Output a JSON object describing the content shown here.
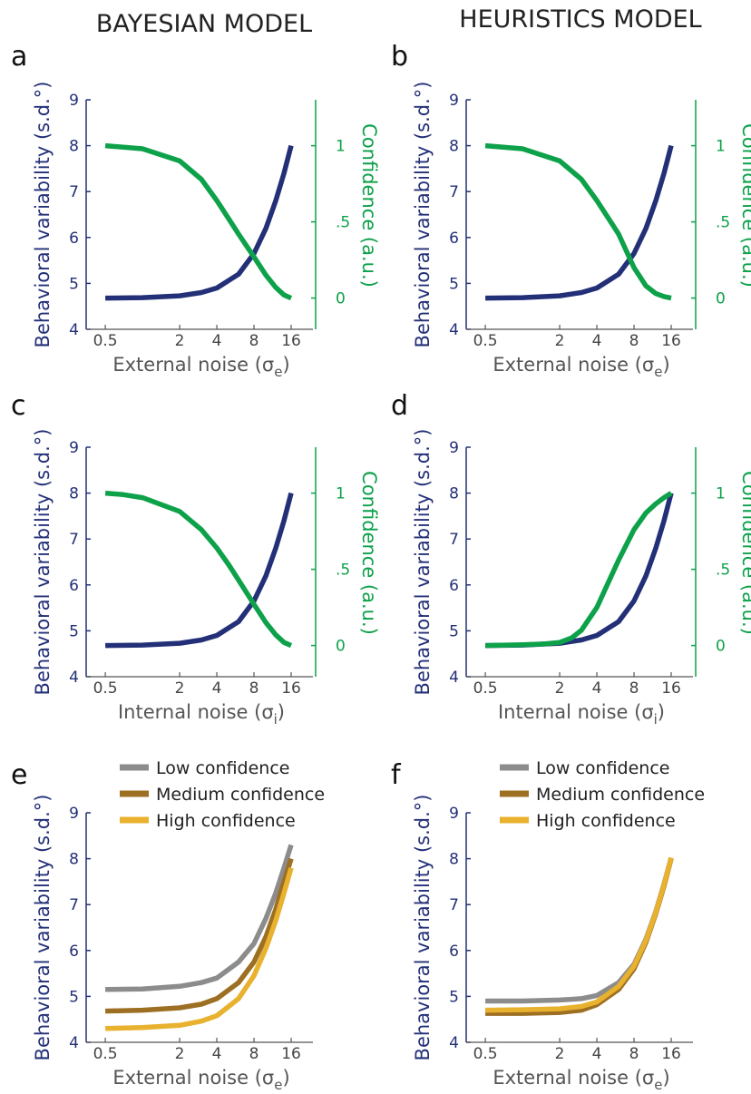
{
  "column_titles": [
    "BAYESIAN MODEL",
    "HEURISTICS MODEL"
  ],
  "colors": {
    "blue": "#233077",
    "green": "#0da14a",
    "low": "#8c8c8c",
    "medium": "#9c6f22",
    "high": "#e8b12e"
  },
  "legend": [
    "Low confidence",
    "Medium confidence",
    "High confidence"
  ],
  "chart_data": [
    {
      "panel": "a",
      "type": "line",
      "xlabel": "External noise (σe)",
      "xlabel_main": "External noise (σ",
      "xlabel_sub": "e",
      "x_ticks": [
        "0.5",
        "2",
        "4",
        "8",
        "16"
      ],
      "x_scale": "log2",
      "xlim": [
        0.35,
        24
      ],
      "ylabel": "Behavioral variability (s.d.°)",
      "ylim": [
        4,
        9
      ],
      "y_ticks": [
        "4",
        "5",
        "6",
        "7",
        "8",
        "9"
      ],
      "y2label": "Confidence (a.u.)",
      "y2lim": [
        0,
        1.25
      ],
      "y2_ticks": [
        "0",
        ".5",
        "1"
      ],
      "series": [
        {
          "axis": "left",
          "color": "blue",
          "x": [
            0.5,
            1,
            2,
            3,
            4,
            6,
            8,
            10,
            12,
            14,
            16
          ],
          "y": [
            4.68,
            4.69,
            4.73,
            4.8,
            4.9,
            5.2,
            5.65,
            6.2,
            6.8,
            7.4,
            8.0
          ]
        },
        {
          "axis": "right",
          "color": "green",
          "x": [
            0.5,
            1,
            2,
            3,
            4,
            5,
            6,
            8,
            10,
            12,
            14,
            16
          ],
          "y": [
            1.0,
            0.98,
            0.9,
            0.78,
            0.64,
            0.52,
            0.42,
            0.27,
            0.15,
            0.07,
            0.02,
            0.0
          ]
        }
      ]
    },
    {
      "panel": "b",
      "type": "line",
      "xlabel": "External noise (σe)",
      "xlabel_main": "External noise (σ",
      "xlabel_sub": "e",
      "x_ticks": [
        "0.5",
        "2",
        "4",
        "8",
        "16"
      ],
      "x_scale": "log2",
      "xlim": [
        0.35,
        24
      ],
      "ylabel": "Behavioral variability (s.d.°)",
      "ylim": [
        4,
        9
      ],
      "y_ticks": [
        "4",
        "5",
        "6",
        "7",
        "8",
        "9"
      ],
      "y2label": "Confidence (a.u.)",
      "y2lim": [
        0,
        1.25
      ],
      "y2_ticks": [
        "0",
        ".5",
        "1"
      ],
      "series": [
        {
          "axis": "left",
          "color": "blue",
          "x": [
            0.5,
            1,
            2,
            3,
            4,
            6,
            8,
            10,
            12,
            14,
            16
          ],
          "y": [
            4.68,
            4.69,
            4.73,
            4.8,
            4.9,
            5.2,
            5.65,
            6.2,
            6.8,
            7.4,
            8.0
          ]
        },
        {
          "axis": "right",
          "color": "green",
          "x": [
            0.5,
            1,
            2,
            3,
            4,
            5,
            6,
            8,
            10,
            12,
            14,
            16
          ],
          "y": [
            1.0,
            0.98,
            0.9,
            0.78,
            0.64,
            0.52,
            0.42,
            0.2,
            0.08,
            0.03,
            0.01,
            0.0
          ]
        }
      ]
    },
    {
      "panel": "c",
      "type": "line",
      "xlabel": "Internal noise (σi)",
      "xlabel_main": "Internal noise (σ",
      "xlabel_sub": "i",
      "x_ticks": [
        "0.5",
        "2",
        "4",
        "8",
        "16"
      ],
      "x_scale": "log2",
      "xlim": [
        0.35,
        24
      ],
      "ylabel": "Behavioral variability (s.d.°)",
      "ylim": [
        4,
        9
      ],
      "y_ticks": [
        "4",
        "5",
        "6",
        "7",
        "8",
        "9"
      ],
      "y2label": "Confidence (a.u.)",
      "y2lim": [
        0,
        1.25
      ],
      "y2_ticks": [
        "0",
        ".5",
        "1"
      ],
      "series": [
        {
          "axis": "left",
          "color": "blue",
          "x": [
            0.5,
            1,
            2,
            3,
            4,
            6,
            8,
            10,
            12,
            14,
            16
          ],
          "y": [
            4.68,
            4.69,
            4.73,
            4.8,
            4.9,
            5.2,
            5.65,
            6.2,
            6.8,
            7.4,
            8.0
          ]
        },
        {
          "axis": "right",
          "color": "green",
          "x": [
            0.5,
            0.7,
            1,
            2,
            3,
            4,
            5,
            6,
            8,
            10,
            12,
            14,
            16
          ],
          "y": [
            1.0,
            0.99,
            0.97,
            0.88,
            0.76,
            0.64,
            0.53,
            0.43,
            0.27,
            0.15,
            0.07,
            0.02,
            0.0
          ]
        }
      ]
    },
    {
      "panel": "d",
      "type": "line",
      "xlabel": "Internal noise (σi)",
      "xlabel_main": "Internal noise (σ",
      "xlabel_sub": "i",
      "x_ticks": [
        "0.5",
        "2",
        "4",
        "8",
        "16"
      ],
      "x_scale": "log2",
      "xlim": [
        0.35,
        24
      ],
      "ylabel": "Behavioral variability (s.d.°)",
      "ylim": [
        4,
        9
      ],
      "y_ticks": [
        "4",
        "5",
        "6",
        "7",
        "8",
        "9"
      ],
      "y2label": "Confidence (a.u.)",
      "y2lim": [
        0,
        1.25
      ],
      "y2_ticks": [
        "0",
        ".5",
        "1"
      ],
      "series": [
        {
          "axis": "left",
          "color": "blue",
          "x": [
            0.5,
            1,
            2,
            3,
            4,
            6,
            8,
            10,
            12,
            14,
            16
          ],
          "y": [
            4.68,
            4.69,
            4.73,
            4.8,
            4.9,
            5.2,
            5.65,
            6.2,
            6.8,
            7.4,
            8.0
          ]
        },
        {
          "axis": "right",
          "color": "green",
          "x": [
            0.5,
            1,
            1.5,
            2,
            2.5,
            3,
            4,
            5,
            6,
            8,
            10,
            12,
            14,
            16
          ],
          "y": [
            0.0,
            0.005,
            0.01,
            0.02,
            0.05,
            0.1,
            0.25,
            0.42,
            0.56,
            0.76,
            0.87,
            0.93,
            0.97,
            1.0
          ]
        }
      ]
    },
    {
      "panel": "e",
      "type": "line",
      "xlabel": "External noise (σe)",
      "xlabel_main": "External noise (σ",
      "xlabel_sub": "e",
      "x_ticks": [
        "0.5",
        "2",
        "4",
        "8",
        "16"
      ],
      "x_scale": "log2",
      "xlim": [
        0.35,
        24
      ],
      "ylabel": "Behavioral variability (s.d.°)",
      "ylim": [
        4,
        9
      ],
      "y_ticks": [
        "4",
        "5",
        "6",
        "7",
        "8",
        "9"
      ],
      "legend": "top",
      "series": [
        {
          "name": "Low confidence",
          "axis": "left",
          "color": "low",
          "x": [
            0.5,
            1,
            2,
            3,
            4,
            6,
            8,
            10,
            12,
            14,
            16
          ],
          "y": [
            5.15,
            5.16,
            5.22,
            5.3,
            5.4,
            5.75,
            6.15,
            6.7,
            7.25,
            7.8,
            8.3
          ]
        },
        {
          "name": "Medium confidence",
          "axis": "left",
          "color": "medium",
          "x": [
            0.5,
            1,
            2,
            3,
            4,
            6,
            8,
            10,
            12,
            14,
            16
          ],
          "y": [
            4.68,
            4.7,
            4.75,
            4.83,
            4.95,
            5.3,
            5.75,
            6.3,
            6.9,
            7.5,
            8.0
          ]
        },
        {
          "name": "High confidence",
          "axis": "left",
          "color": "high",
          "x": [
            0.5,
            1,
            2,
            3,
            4,
            6,
            8,
            10,
            12,
            14,
            16
          ],
          "y": [
            4.3,
            4.32,
            4.37,
            4.46,
            4.58,
            4.95,
            5.45,
            6.05,
            6.65,
            7.25,
            7.8
          ]
        }
      ]
    },
    {
      "panel": "f",
      "type": "line",
      "xlabel": "External noise (σe)",
      "xlabel_main": "External noise (σ",
      "xlabel_sub": "e",
      "x_ticks": [
        "0.5",
        "2",
        "4",
        "8",
        "16"
      ],
      "x_scale": "log2",
      "xlim": [
        0.35,
        24
      ],
      "ylabel": "Behavioral variability (s.d.°)",
      "ylim": [
        4,
        9
      ],
      "y_ticks": [
        "4",
        "5",
        "6",
        "7",
        "8",
        "9"
      ],
      "legend": "top",
      "series": [
        {
          "name": "Low confidence",
          "axis": "left",
          "color": "low",
          "x": [
            0.5,
            1,
            2,
            3,
            4,
            6,
            8,
            10,
            12,
            14,
            16
          ],
          "y": [
            4.9,
            4.9,
            4.92,
            4.95,
            5.02,
            5.3,
            5.7,
            6.25,
            6.85,
            7.45,
            8.02
          ]
        },
        {
          "name": "Medium confidence",
          "axis": "left",
          "color": "medium",
          "x": [
            0.5,
            1,
            2,
            3,
            4,
            6,
            8,
            10,
            12,
            14,
            16
          ],
          "y": [
            4.63,
            4.63,
            4.65,
            4.7,
            4.82,
            5.15,
            5.6,
            6.18,
            6.8,
            7.4,
            8.0
          ]
        },
        {
          "name": "High confidence",
          "axis": "left",
          "color": "high",
          "x": [
            0.5,
            1,
            2,
            3,
            4,
            6,
            8,
            10,
            12,
            14,
            16
          ],
          "y": [
            4.7,
            4.71,
            4.73,
            4.78,
            4.88,
            5.22,
            5.66,
            6.22,
            6.83,
            7.43,
            8.02
          ]
        }
      ]
    }
  ]
}
